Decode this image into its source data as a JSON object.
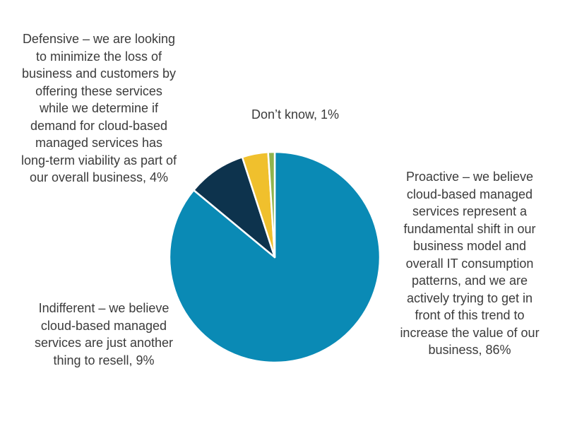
{
  "chart_data": {
    "type": "pie",
    "title": "",
    "start_angle_deg": 0,
    "direction": "clockwise",
    "slices": [
      {
        "key": "proactive",
        "label": "Proactive – we believe cloud-based managed services represent a fundamental shift in our business model and overall IT consumption patterns, and we are actively trying to get in front of this trend to increase the value of our business, 86%",
        "value": 86,
        "color": "#0a8ab5"
      },
      {
        "key": "indifferent",
        "label": "Indifferent – we believe cloud-based managed services are just another thing to resell, 9%",
        "value": 9,
        "color": "#0d334d"
      },
      {
        "key": "defensive",
        "label": "Defensive – we are looking to minimize the loss of business and customers by offering these services while we determine if demand for cloud-based managed services has long-term viability as part of our overall business, 4%",
        "value": 4,
        "color": "#f0c02d"
      },
      {
        "key": "dontknow",
        "label": "Don’t know, 1%",
        "value": 1,
        "color": "#8fb34d"
      }
    ]
  }
}
